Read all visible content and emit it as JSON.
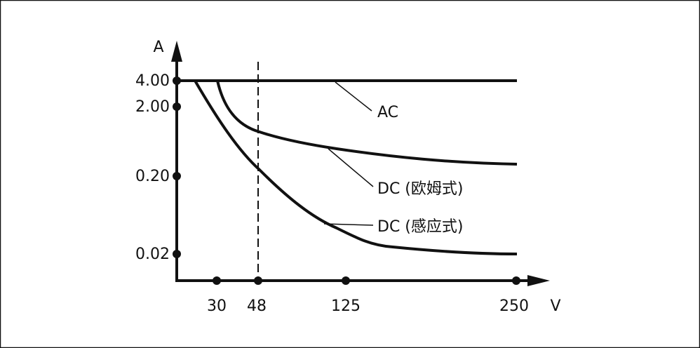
{
  "axes": {
    "y_label": "A",
    "x_label": "V",
    "y_ticks": [
      "4.00",
      "2.00",
      "0.20",
      "0.02"
    ],
    "x_ticks": [
      "30",
      "48",
      "125",
      "250"
    ]
  },
  "curves": [
    {
      "label": "AC"
    },
    {
      "label": "DC (欧姆式)"
    },
    {
      "label": "DC (感应式)"
    }
  ]
}
